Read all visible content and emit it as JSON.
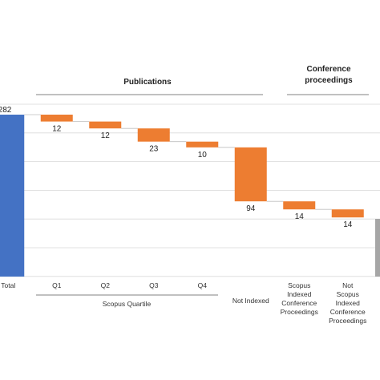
{
  "chart_data": {
    "type": "bar",
    "subtype": "waterfall",
    "categories": [
      "Total",
      "Q1",
      "Q2",
      "Q3",
      "Q4",
      "Not Indexed",
      "Scopus Indexed Conference Proceedings",
      "Not Scopus Indexed Conference Proceedings"
    ],
    "values": [
      282,
      12,
      12,
      23,
      10,
      94,
      14,
      14
    ],
    "series": [
      {
        "values": [
          282,
          12,
          12,
          23,
          10,
          94,
          14,
          14
        ]
      }
    ],
    "group_labels": {
      "publications": "Publications",
      "conference": "Conference proceedings",
      "quartile": "Scopus Quartile"
    },
    "ylim": [
      0,
      282
    ],
    "grid": true,
    "colors": {
      "total": "#4472c4",
      "decrease": "#ed7d31",
      "gray": "#a6a6a6",
      "grid": "#d9d9d9"
    }
  }
}
